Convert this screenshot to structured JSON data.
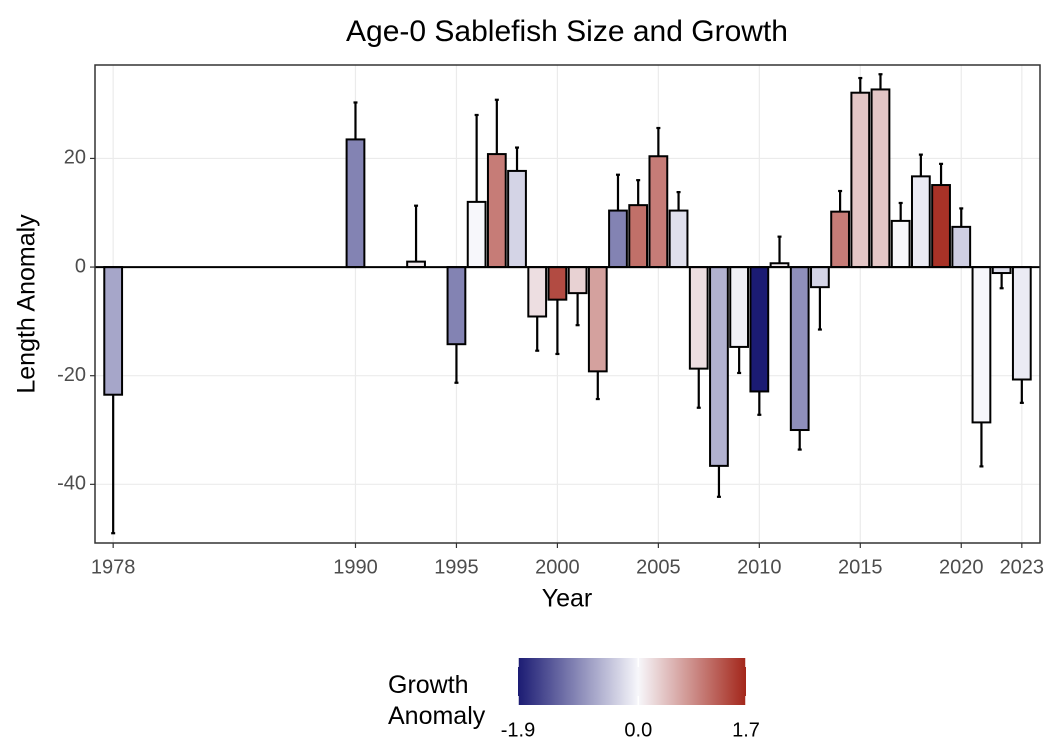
{
  "chart_data": {
    "type": "bar",
    "title": "Age-0 Sablefish Size and Growth",
    "x_label": "Year",
    "y_label": "Length Anomaly",
    "x": [
      1978,
      1990,
      1993,
      1995,
      1996,
      1997,
      1998,
      1999,
      2000,
      2001,
      2002,
      2003,
      2004,
      2005,
      2006,
      2007,
      2008,
      2009,
      2010,
      2011,
      2012,
      2013,
      2014,
      2015,
      2016,
      2017,
      2018,
      2019,
      2020,
      2021,
      2022,
      2023
    ],
    "values": [
      -23.5,
      23.5,
      1.0,
      -14.2,
      12.0,
      20.8,
      17.7,
      -9.1,
      -6.0,
      -4.8,
      -19.2,
      10.4,
      11.4,
      20.4,
      10.4,
      -18.7,
      -36.6,
      -14.7,
      -22.9,
      0.7,
      -30.0,
      -3.7,
      10.2,
      32.1,
      32.7,
      8.5,
      16.7,
      15.1,
      7.4,
      -28.6,
      -1.1,
      -20.7
    ],
    "errors": [
      25.5,
      6.8,
      10.3,
      7.1,
      16.0,
      10.0,
      4.3,
      6.3,
      10.0,
      5.9,
      5.1,
      6.6,
      4.6,
      5.2,
      3.4,
      7.2,
      5.7,
      4.8,
      4.3,
      4.9,
      3.6,
      7.8,
      3.8,
      2.7,
      2.8,
      3.3,
      4.0,
      3.9,
      3.4,
      8.1,
      2.8,
      4.3
    ],
    "growth": [
      -0.7,
      -1.0,
      0.1,
      -1.0,
      0.0,
      1.0,
      -0.3,
      0.2,
      1.4,
      0.3,
      0.7,
      -1.0,
      1.1,
      1.0,
      -0.2,
      0.2,
      -0.6,
      -0.05,
      -1.9,
      0.1,
      -0.9,
      -0.3,
      1.0,
      0.4,
      0.4,
      0.0,
      -0.1,
      1.6,
      -0.35,
      0.0,
      -0.2,
      -0.1
    ],
    "xlim": [
      1977.1,
      2023.9
    ],
    "xticks": [
      1978,
      1990,
      1995,
      2000,
      2005,
      2010,
      2015,
      2020,
      2023
    ],
    "ylim": [
      -50.8,
      37.2
    ],
    "yticks": [
      -40,
      -20,
      0,
      20
    ],
    "grid": true,
    "legend": {
      "title": "Growth\nAnomaly",
      "limits": [
        -1.9,
        1.7
      ],
      "ticks": [
        -1.9,
        {
          "value": 0,
          "label": "0.0"
        },
        1.7
      ],
      "colors": {
        "low": "#1b1b73",
        "mid": "#f7f7fb",
        "high": "#a3261a"
      }
    }
  }
}
